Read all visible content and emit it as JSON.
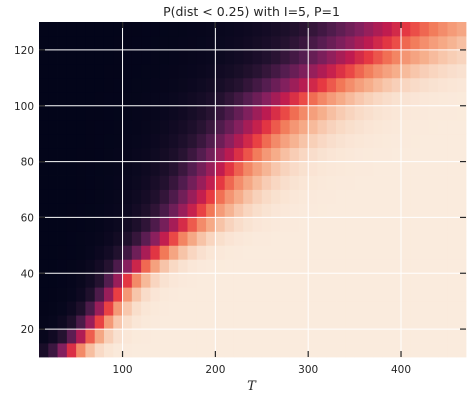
{
  "chart_data": {
    "type": "heatmap",
    "title": "P(dist < 0.25) with I=5, P=1",
    "xlabel": "T",
    "ylabel": "",
    "xlim": [
      10,
      470
    ],
    "ylim": [
      10,
      130
    ],
    "x_bin_width": 10,
    "y_bin_width": 5,
    "xticks": [
      100,
      200,
      300,
      400
    ],
    "yticks": [
      20,
      40,
      60,
      80,
      100,
      120
    ],
    "grid": true,
    "colormap": "rocket",
    "value_range": [
      0,
      1
    ],
    "transition": {
      "description": "probability rises from 0 to 1 as T increases past a boundary that grows with the y value",
      "t50_at_y": [
        [
          10,
          30
        ],
        [
          20,
          60
        ],
        [
          40,
          100
        ],
        [
          60,
          160
        ],
        [
          80,
          200
        ],
        [
          100,
          250
        ],
        [
          120,
          340
        ],
        [
          130,
          375
        ]
      ],
      "width_fraction": 0.12
    }
  },
  "colors": {
    "low": "#03051a",
    "mid": "#a11a5b",
    "high": "#faebdd",
    "grid": "#ffffff",
    "axis": "#262626"
  }
}
